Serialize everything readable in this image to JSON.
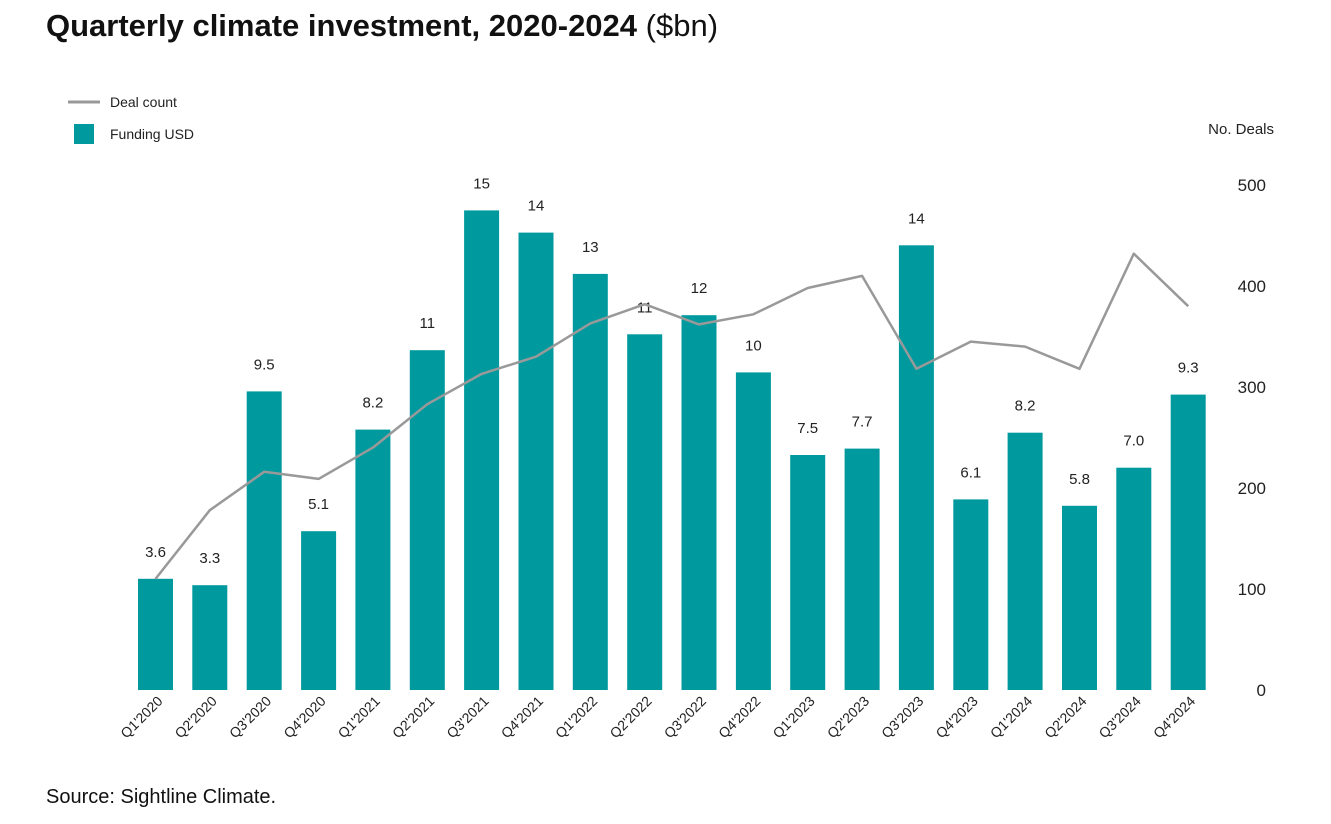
{
  "header": {
    "title_bold": "Quarterly climate investment, 2020-2024",
    "title_unit": "($bn)"
  },
  "footer": {
    "source": "Source: Sightline Climate."
  },
  "chart_data": {
    "type": "bar",
    "categories": [
      "Q1'2020",
      "Q2'2020",
      "Q3'2020",
      "Q4'2020",
      "Q1'2021",
      "Q2'2021",
      "Q3'2021",
      "Q4'2021",
      "Q1'2022",
      "Q2'2022",
      "Q3'2022",
      "Q4'2022",
      "Q1'2023",
      "Q2'2023",
      "Q3'2023",
      "Q4'2023",
      "Q1'2024",
      "Q2'2024",
      "Q3'2024",
      "Q4'2024"
    ],
    "series": [
      {
        "name": "Funding USD",
        "type": "bar",
        "axis": "left",
        "color": "#009a9e",
        "values": [
          3.6,
          3.3,
          9.5,
          5.1,
          8.2,
          11,
          15,
          14,
          13,
          11,
          12,
          10,
          7.5,
          7.7,
          14,
          6.1,
          8.2,
          5.8,
          7.0,
          9.3
        ],
        "plotted_values": [
          3.5,
          3.3,
          9.4,
          5.0,
          8.2,
          10.7,
          15.1,
          14.4,
          13.1,
          11.2,
          11.8,
          10.0,
          7.4,
          7.6,
          14.0,
          6.0,
          8.1,
          5.8,
          7.0,
          9.3
        ],
        "labels": [
          "3.6",
          "3.3",
          "9.5",
          "5.1",
          "8.2",
          "11",
          "15",
          "14",
          "13",
          "11",
          "12",
          "10",
          "7.5",
          "7.7",
          "14",
          "6.1",
          "8.2",
          "5.8",
          "7.0",
          "9.3"
        ]
      },
      {
        "name": "Deal count",
        "type": "line",
        "axis": "right",
        "color": "#999999",
        "values": [
          110,
          178,
          216,
          209,
          240,
          283,
          313,
          330,
          363,
          382,
          362,
          372,
          398,
          410,
          318,
          345,
          340,
          318,
          432,
          380
        ]
      }
    ],
    "left_axis": {
      "range": [
        0,
        15.9
      ]
    },
    "right_axis": {
      "label": "No. Deals",
      "range": [
        0,
        500
      ],
      "ticks": [
        0,
        100,
        200,
        300,
        400,
        500
      ]
    },
    "legend": {
      "position": "top-left",
      "items": [
        "Deal count",
        "Funding USD"
      ]
    }
  }
}
